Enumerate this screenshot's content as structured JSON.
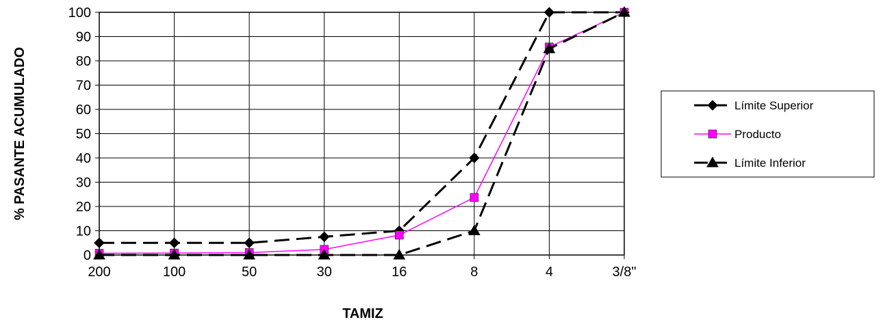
{
  "chart_data": {
    "type": "line",
    "title": "",
    "xlabel": "TAMIZ",
    "ylabel": "% PASANTE ACUMULADO",
    "categories": [
      "200",
      "100",
      "50",
      "30",
      "16",
      "8",
      "4",
      "3/8\""
    ],
    "ylim": [
      0,
      100
    ],
    "yticks": [
      0,
      10,
      20,
      30,
      40,
      50,
      60,
      70,
      80,
      90,
      100
    ],
    "grid": true,
    "legend_position": "right",
    "series": [
      {
        "name": "Límite Superior",
        "values": [
          5,
          5,
          5,
          7.5,
          10,
          40,
          100,
          100
        ],
        "color": "#000000",
        "marker": "diamond",
        "dashed": true
      },
      {
        "name": "Producto",
        "values": [
          0.7,
          0.8,
          1.0,
          2.3,
          8.2,
          23.7,
          85.7,
          100
        ],
        "color": "#ff00ff",
        "marker": "square",
        "dashed": false
      },
      {
        "name": "Límite Inferior",
        "values": [
          0,
          0,
          0,
          0,
          0,
          10,
          85,
          100
        ],
        "color": "#000000",
        "marker": "triangle",
        "dashed": true
      }
    ]
  }
}
